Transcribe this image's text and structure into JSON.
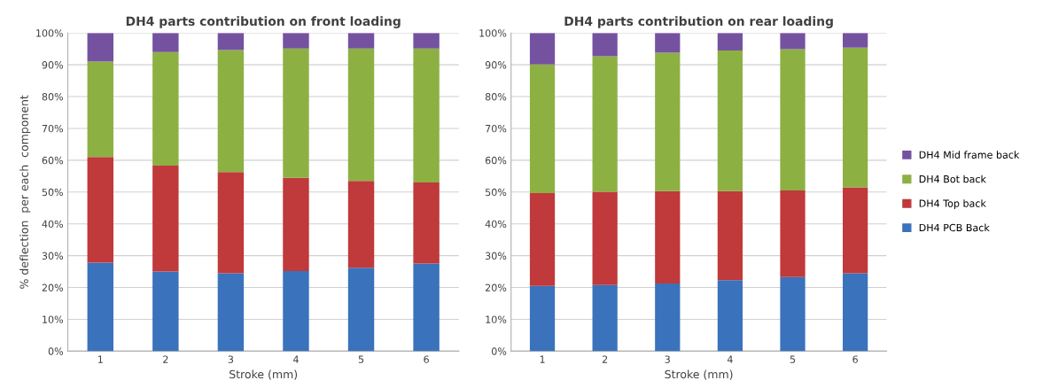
{
  "chart_data": [
    {
      "type": "bar",
      "title": "DH4 parts contribution on front loading",
      "xlabel": "Stroke (mm)",
      "ylabel": "% deflection  per each  component",
      "categories": [
        "1",
        "2",
        "3",
        "4",
        "5",
        "6"
      ],
      "stacked": true,
      "ylim": [
        0,
        100
      ],
      "yticks": [
        {
          "value": 0,
          "label": "0%"
        },
        {
          "value": 10,
          "label": "10%"
        },
        {
          "value": 20,
          "label": "20%"
        },
        {
          "value": 30,
          "label": "30%"
        },
        {
          "value": 40,
          "label": "40%"
        },
        {
          "value": 50,
          "label": "50%"
        },
        {
          "value": 60,
          "label": "60%"
        },
        {
          "value": 70,
          "label": "70%"
        },
        {
          "value": 80,
          "label": "80%"
        },
        {
          "value": 90,
          "label": "90%"
        },
        {
          "value": 100,
          "label": "100%"
        }
      ],
      "grid": "y",
      "series": [
        {
          "color": "#3a72bc",
          "values": [
            27.8,
            25.0,
            24.5,
            25.2,
            26.2,
            27.5
          ]
        },
        {
          "color": "#c0393b",
          "values": [
            33.2,
            33.3,
            31.8,
            29.3,
            27.3,
            25.5
          ]
        },
        {
          "color": "#8db043",
          "values": [
            30.0,
            35.7,
            38.3,
            40.6,
            41.6,
            42.1
          ]
        },
        {
          "color": "#7452a0",
          "values": [
            9.0,
            6.0,
            5.4,
            4.9,
            4.9,
            4.9
          ]
        }
      ]
    },
    {
      "type": "bar",
      "title": "DH4 parts contribution on rear loading",
      "xlabel": "Stroke (mm)",
      "categories": [
        "1",
        "2",
        "3",
        "4",
        "5",
        "6"
      ],
      "stacked": true,
      "ylim": [
        0,
        100
      ],
      "yticks": [
        {
          "value": 0,
          "label": "0%"
        },
        {
          "value": 10,
          "label": "10%"
        },
        {
          "value": 20,
          "label": "20%"
        },
        {
          "value": 30,
          "label": "30%"
        },
        {
          "value": 40,
          "label": "40%"
        },
        {
          "value": 50,
          "label": "50%"
        },
        {
          "value": 60,
          "label": "60%"
        },
        {
          "value": 70,
          "label": "70%"
        },
        {
          "value": 80,
          "label": "80%"
        },
        {
          "value": 90,
          "label": "90%"
        },
        {
          "value": 100,
          "label": "100%"
        }
      ],
      "grid": "y",
      "legend": "right",
      "series": [
        {
          "name": "DH4 PCB Back",
          "color": "#3a72bc",
          "values": [
            20.5,
            20.8,
            21.3,
            22.3,
            23.3,
            24.5
          ]
        },
        {
          "name": "DH4 Top back",
          "color": "#c0393b",
          "values": [
            29.2,
            29.3,
            29.0,
            28.0,
            27.2,
            27.0
          ]
        },
        {
          "name": "DH4 Bot back",
          "color": "#8db043",
          "values": [
            40.4,
            42.6,
            43.5,
            44.2,
            44.4,
            43.9
          ]
        },
        {
          "name": "DH4 Mid frame back",
          "color": "#7452a0",
          "values": [
            9.9,
            7.3,
            6.2,
            5.5,
            5.1,
            4.6
          ]
        }
      ]
    }
  ]
}
